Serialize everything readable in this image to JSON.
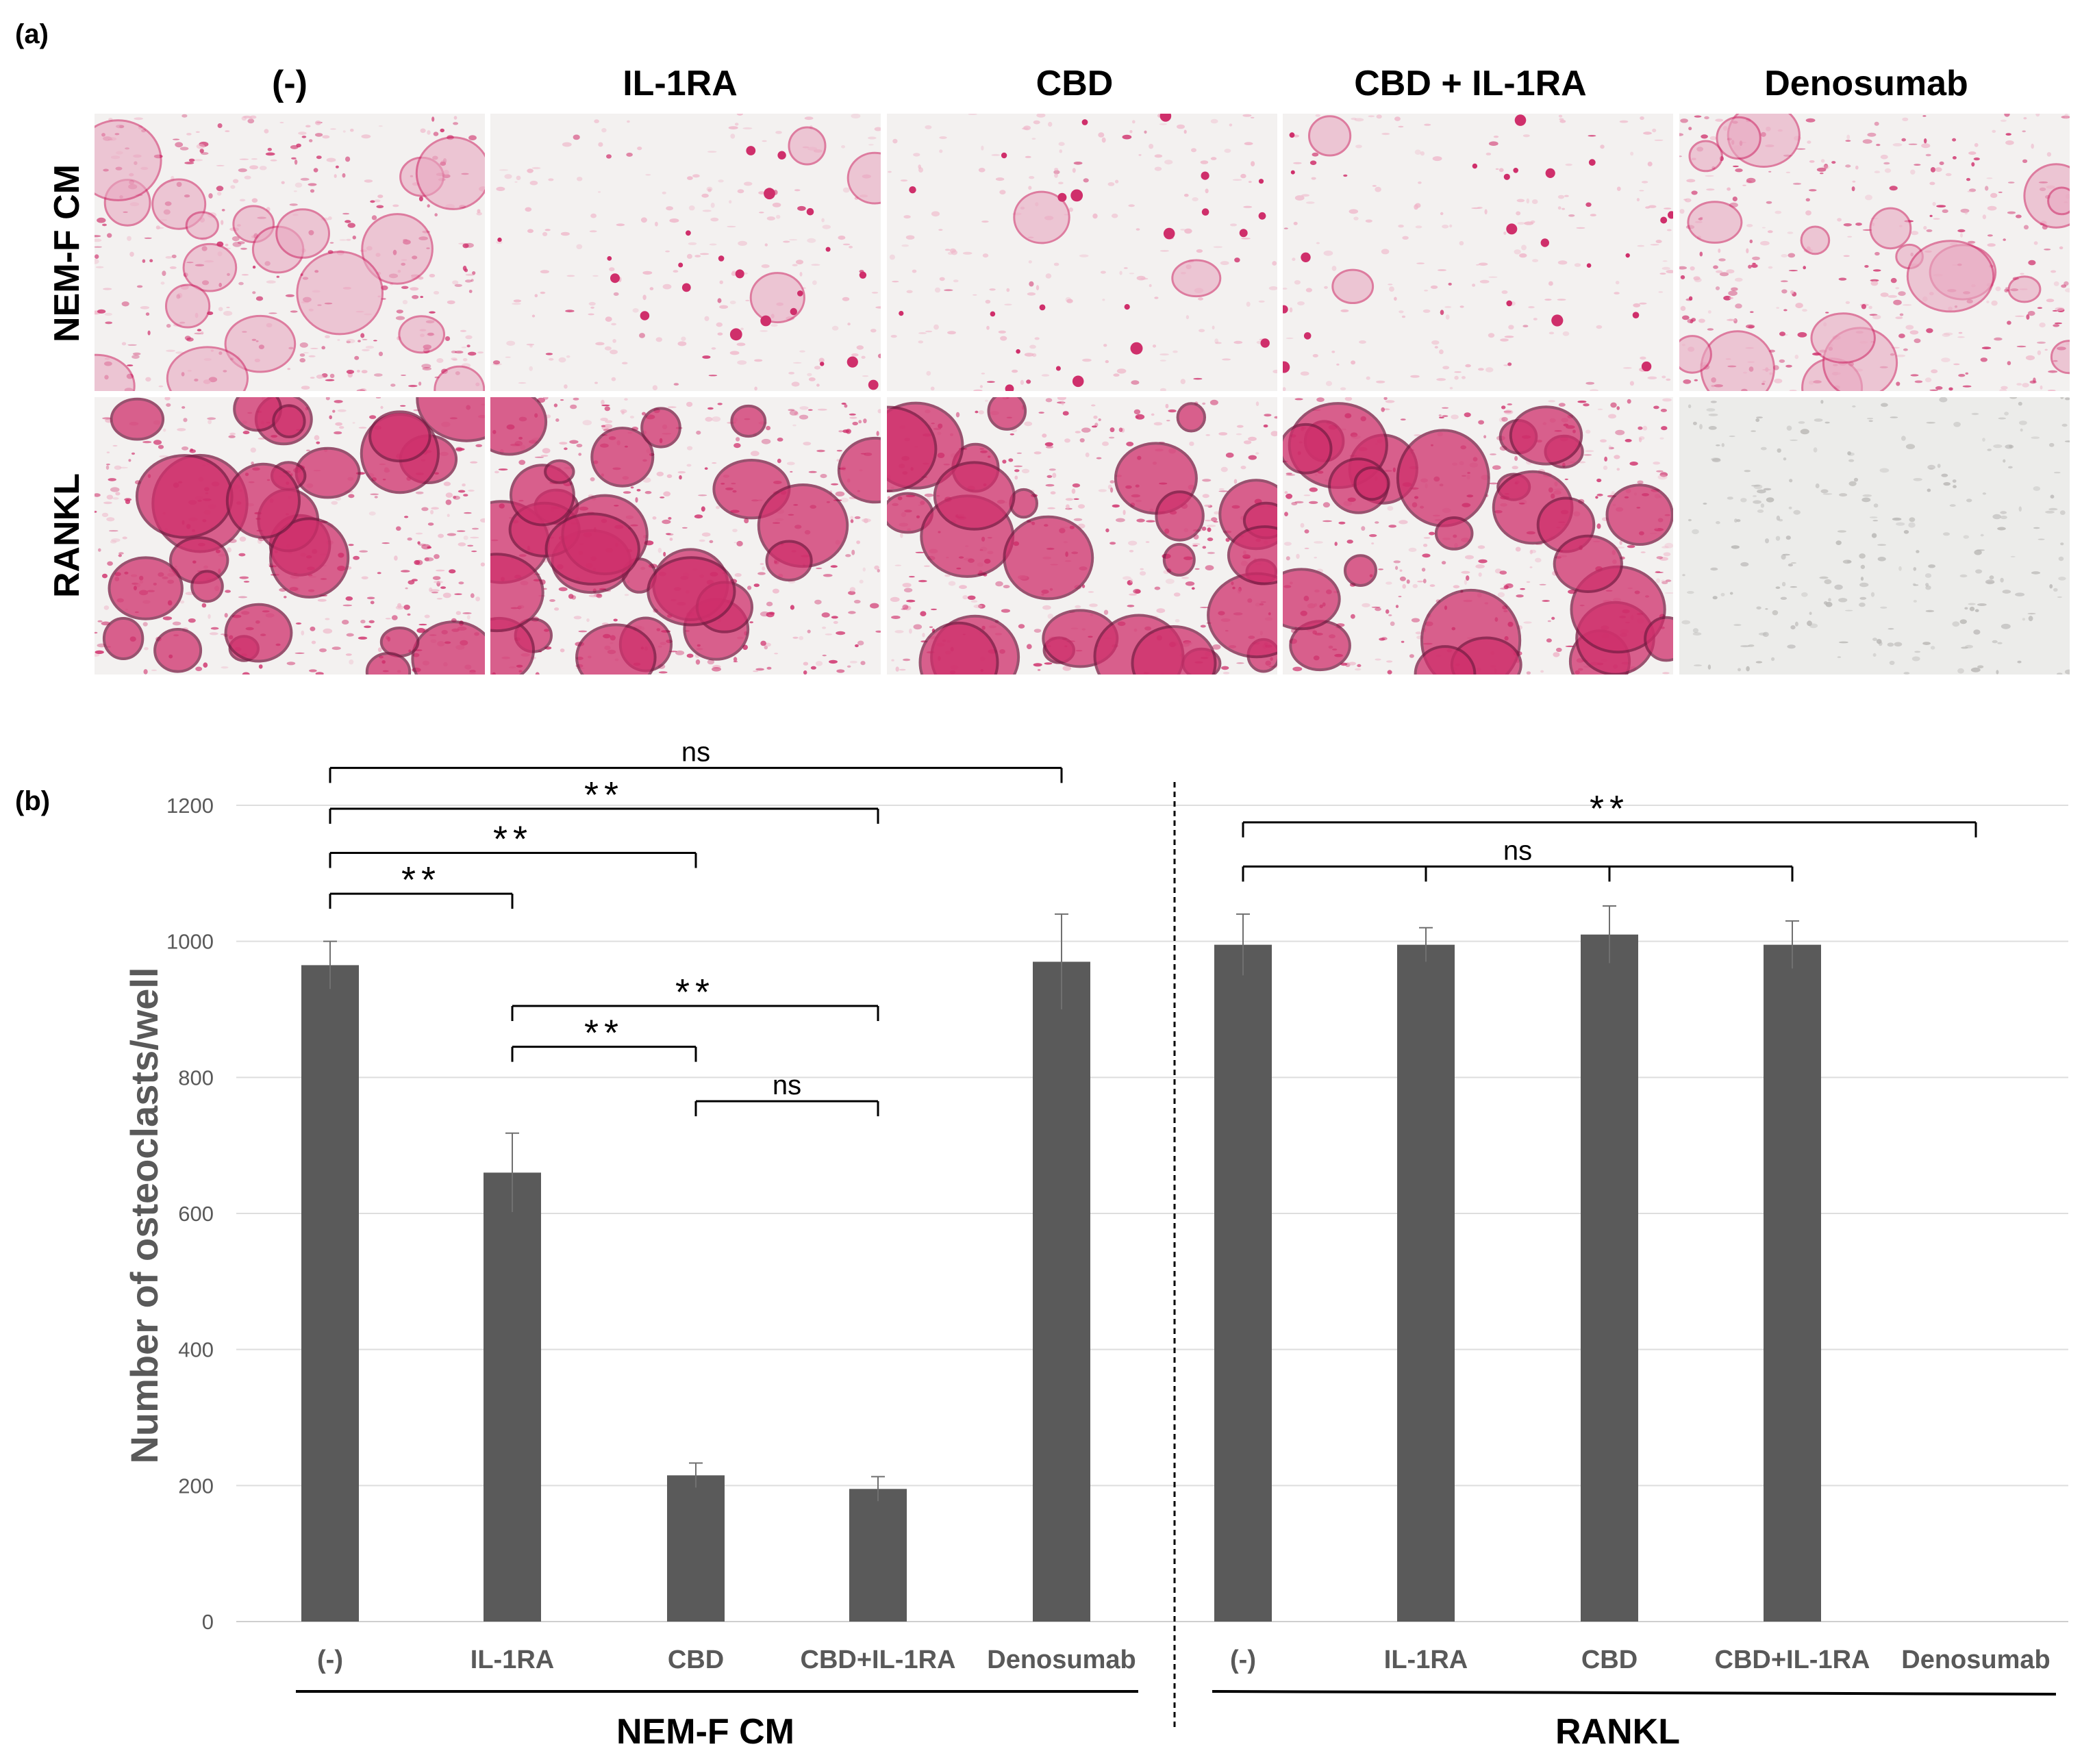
{
  "panel_a": {
    "label": "(a)",
    "columns": [
      "(-)",
      "IL-1RA",
      "CBD",
      "CBD + IL-1RA",
      "Denosumab"
    ],
    "rows": [
      "NEM-F CM",
      "RANKL"
    ],
    "staining_density": [
      [
        0.9,
        0.15,
        0.1,
        0.1,
        0.9
      ],
      [
        1.0,
        1.0,
        1.0,
        1.0,
        0.0
      ]
    ]
  },
  "panel_b": {
    "label": "(b)"
  },
  "colors": {
    "bar": "#5a5a5a",
    "stain": "#cf2f6b",
    "stain_dark": "#7a1d45",
    "background_cells": "#efb6c9"
  },
  "chart_data": {
    "type": "bar",
    "ylabel": "Number of osteoclasts/well",
    "ylim": [
      0,
      1200
    ],
    "yticks": [
      "0",
      "200",
      "400",
      "600",
      "800",
      "1000",
      "1200"
    ],
    "grid": true,
    "groups": [
      {
        "name": "NEM-F CM",
        "categories": [
          "(-)",
          "IL-1RA",
          "CBD",
          "CBD+IL-1RA",
          "Denosumab"
        ],
        "values": [
          965,
          660,
          215,
          195,
          970
        ],
        "errors": [
          35,
          58,
          18,
          18,
          70
        ]
      },
      {
        "name": "RANKL",
        "categories": [
          "(-)",
          "IL-1RA",
          "CBD",
          "CBD+IL-1RA",
          "Denosumab"
        ],
        "values": [
          995,
          995,
          1010,
          995,
          0
        ],
        "errors": [
          45,
          25,
          42,
          35,
          0
        ]
      }
    ],
    "annotations": [
      {
        "text": "ns",
        "group": 0,
        "from": 0,
        "to": [
          4
        ],
        "level": 1255
      },
      {
        "text": "**",
        "group": 0,
        "from": 0,
        "to": [
          3
        ],
        "level": 1195
      },
      {
        "text": "**",
        "group": 0,
        "from": 0,
        "to": [
          2
        ],
        "level": 1130
      },
      {
        "text": "**",
        "group": 0,
        "from": 0,
        "to": [
          1
        ],
        "level": 1070
      },
      {
        "text": "**",
        "group": 0,
        "from": 1,
        "to": [
          3
        ],
        "level": 905
      },
      {
        "text": "**",
        "group": 0,
        "from": 1,
        "to": [
          2
        ],
        "level": 845
      },
      {
        "text": "ns",
        "group": 0,
        "from": 2,
        "to": [
          3
        ],
        "level": 765
      },
      {
        "text": "**",
        "group": 1,
        "from": 0,
        "to": [
          4
        ],
        "level": 1175
      },
      {
        "text": "ns",
        "group": 1,
        "from": 0,
        "to": [
          1,
          2,
          3
        ],
        "level": 1110
      }
    ]
  }
}
